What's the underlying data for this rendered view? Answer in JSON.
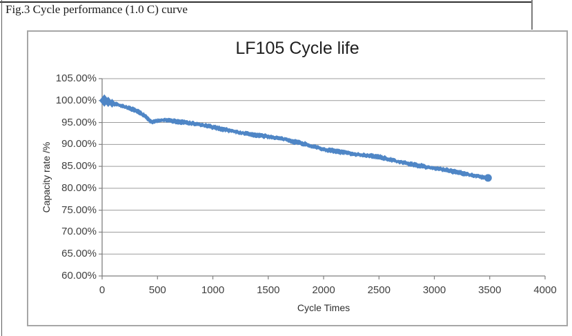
{
  "caption": "Fig.3 Cycle performance (1.0 C) curve",
  "chart_data": {
    "type": "scatter",
    "title": "LF105 Cycle life",
    "xlabel": "Cycle Times",
    "ylabel": "Capacity rate /%",
    "xlim": [
      0,
      4000
    ],
    "ylim": [
      60,
      105
    ],
    "x_ticks": [
      0,
      500,
      1000,
      1500,
      2000,
      2500,
      3000,
      3500,
      4000
    ],
    "y_ticks": [
      "105.00%",
      "100.00%",
      "95.00%",
      "90.00%",
      "85.00%",
      "80.00%",
      "75.00%",
      "70.00%",
      "65.00%",
      "60.00%"
    ],
    "grid": "horizontal-only",
    "legend": "none",
    "series": [
      {
        "name": "capacity-retention",
        "color": "#4f86c6",
        "marker": "diamond-dense-band",
        "spread_pct": 0.45,
        "points": [
          [
            0,
            100.1
          ],
          [
            30,
            99.9
          ],
          [
            60,
            99.6
          ],
          [
            100,
            99.2
          ],
          [
            150,
            98.9
          ],
          [
            200,
            98.5
          ],
          [
            250,
            98.1
          ],
          [
            300,
            97.6
          ],
          [
            350,
            97.1
          ],
          [
            400,
            96.2
          ],
          [
            430,
            95.5
          ],
          [
            460,
            95.2
          ],
          [
            500,
            95.5
          ],
          [
            550,
            95.8
          ],
          [
            600,
            95.6
          ],
          [
            650,
            95.4
          ],
          [
            700,
            95.2
          ],
          [
            800,
            94.8
          ],
          [
            900,
            94.3
          ],
          [
            1000,
            93.8
          ],
          [
            1100,
            93.4
          ],
          [
            1200,
            93.0
          ],
          [
            1300,
            92.6
          ],
          [
            1400,
            92.2
          ],
          [
            1500,
            91.8
          ],
          [
            1600,
            91.3
          ],
          [
            1700,
            90.7
          ],
          [
            1800,
            90.2
          ],
          [
            1900,
            89.6
          ],
          [
            2000,
            89.0
          ],
          [
            2100,
            88.6
          ],
          [
            2200,
            88.2
          ],
          [
            2300,
            87.7
          ],
          [
            2400,
            87.3
          ],
          [
            2500,
            87.0
          ],
          [
            2600,
            86.5
          ],
          [
            2700,
            86.0
          ],
          [
            2800,
            85.6
          ],
          [
            2900,
            85.1
          ],
          [
            3000,
            84.6
          ],
          [
            3100,
            84.1
          ],
          [
            3200,
            83.6
          ],
          [
            3300,
            83.1
          ],
          [
            3400,
            82.7
          ],
          [
            3500,
            82.3
          ]
        ]
      }
    ]
  },
  "colors": {
    "series_blue": "#4f86c6",
    "gridline": "#9c9c9c",
    "axis_line": "#7f7f7f",
    "frame_border": "#a6a6a6",
    "tick_text": "#3f3f3f"
  }
}
